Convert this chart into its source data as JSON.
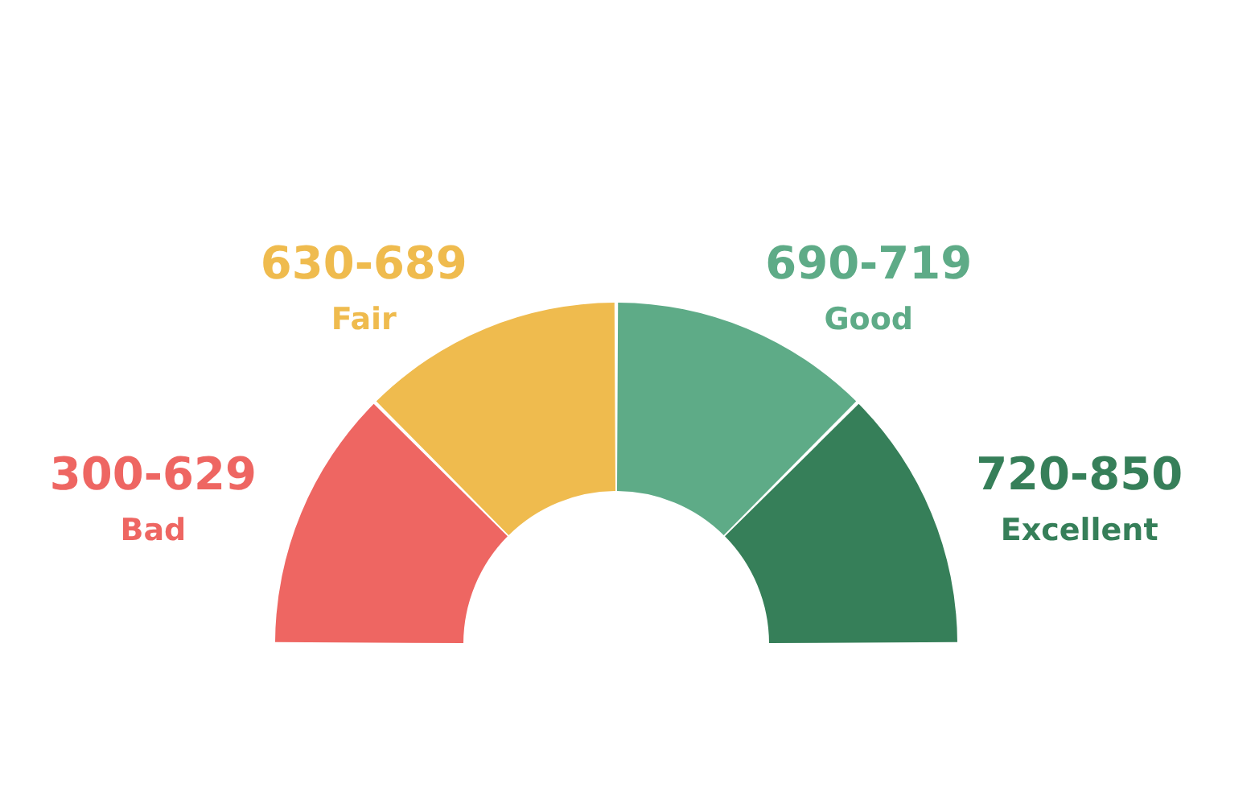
{
  "chart_data": {
    "type": "donut",
    "categories": [
      "Bad",
      "Fair",
      "Good",
      "Excellent"
    ],
    "values": [
      25,
      25,
      25,
      25
    ],
    "colors": [
      "#ee6662",
      "#efbb4e",
      "#5eab87",
      "#367f59"
    ],
    "value_labels": [
      "300-629",
      "630-689",
      "690-719",
      "720-850"
    ]
  }
}
